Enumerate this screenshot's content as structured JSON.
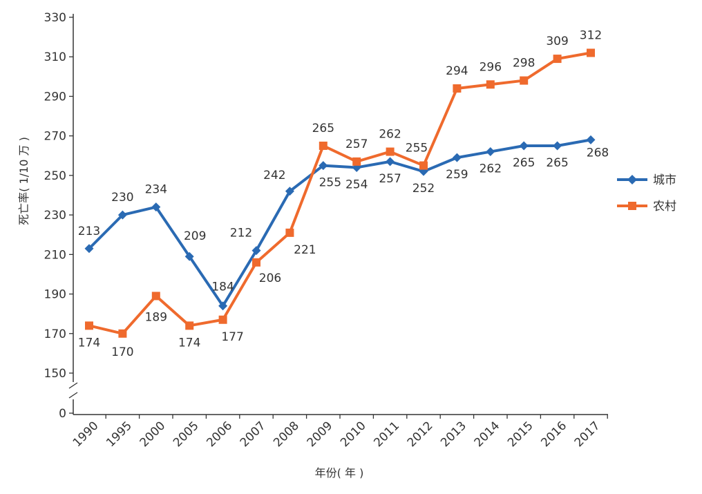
{
  "chart_data": {
    "type": "line",
    "xlabel": "年份( 年 )",
    "ylabel": "死亡率( 1/10 万 )",
    "y_ticks": [
      "0",
      "150",
      "170",
      "190",
      "210",
      "230",
      "250",
      "270",
      "290",
      "310",
      "330"
    ],
    "y_axis_break": true,
    "ylim": [
      150,
      330
    ],
    "categories": [
      "1990",
      "1995",
      "2000",
      "2005",
      "2006",
      "2007",
      "2008",
      "2009",
      "2010",
      "2011",
      "2012",
      "2013",
      "2014",
      "2015",
      "2016",
      "2017"
    ],
    "legend_position": "right",
    "grid": false,
    "series": [
      {
        "name": "城市",
        "color": "#2a6ab3",
        "marker": "diamond",
        "values": [
          213,
          230,
          234,
          209,
          184,
          212,
          242,
          255,
          254,
          257,
          252,
          259,
          262,
          265,
          265,
          268
        ],
        "value_labels": [
          "213",
          "230",
          "234",
          "209",
          "184",
          "212",
          "242",
          "255",
          "254",
          "257",
          "252",
          "259",
          "262",
          "265",
          "265",
          "268"
        ]
      },
      {
        "name": "农村",
        "color": "#ef6a2d",
        "marker": "square",
        "values": [
          174,
          170,
          189,
          174,
          177,
          206,
          221,
          265,
          257,
          262,
          255,
          294,
          296,
          298,
          309,
          312
        ],
        "value_labels": [
          "174",
          "170",
          "189",
          "174",
          "177",
          "206",
          "221",
          "265",
          "257",
          "262",
          "255",
          "294",
          "296",
          "298",
          "309",
          "312"
        ]
      }
    ]
  }
}
